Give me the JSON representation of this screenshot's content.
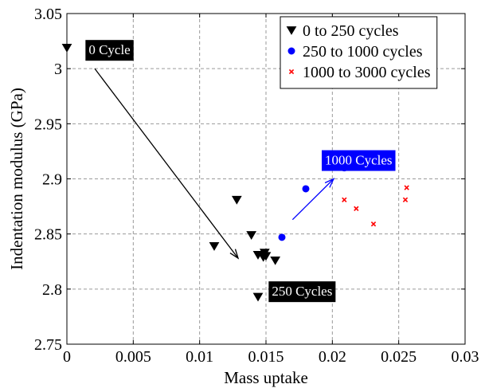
{
  "chart_data": {
    "type": "scatter",
    "xlabel": "Mass uptake",
    "ylabel": "Indentation modulus (GPa)",
    "xlim": [
      0,
      0.03
    ],
    "ylim": [
      2.75,
      3.05
    ],
    "xticks": [
      0,
      0.005,
      0.01,
      0.015,
      0.02,
      0.025,
      0.03
    ],
    "xtick_labels": [
      "0",
      "0.005",
      "0.01",
      "0.015",
      "0.02",
      "0.025",
      "0.03"
    ],
    "yticks": [
      2.75,
      2.8,
      2.85,
      2.9,
      2.95,
      3.0,
      3.05
    ],
    "ytick_labels": [
      "2.75",
      "2.8",
      "2.85",
      "2.9",
      "2.95",
      "3",
      "3.05"
    ],
    "grid": true,
    "legend_position": "top-right",
    "series": [
      {
        "name": "0 to 250 cycles",
        "marker": "triangle-down",
        "color": "#000000",
        "points": [
          [
            0.0,
            3.019
          ],
          [
            0.0111,
            2.839
          ],
          [
            0.0128,
            2.881
          ],
          [
            0.0139,
            2.849
          ],
          [
            0.0144,
            2.831
          ],
          [
            0.0148,
            2.829
          ],
          [
            0.0149,
            2.833
          ],
          [
            0.015,
            2.83
          ],
          [
            0.0157,
            2.826
          ],
          [
            0.0144,
            2.793
          ]
        ]
      },
      {
        "name": "250 to 1000 cycles",
        "marker": "circle",
        "color": "#0000ff",
        "points": [
          [
            0.0162,
            2.847
          ],
          [
            0.018,
            2.891
          ],
          [
            0.0209,
            2.91
          ]
        ]
      },
      {
        "name": "1000 to 3000 cycles",
        "marker": "x",
        "color": "#ff0000",
        "points": [
          [
            0.0209,
            2.881
          ],
          [
            0.0218,
            2.873
          ],
          [
            0.0231,
            2.859
          ],
          [
            0.0255,
            2.881
          ],
          [
            0.0256,
            2.892
          ]
        ]
      }
    ],
    "annotations": [
      {
        "text": "0 Cycle",
        "bg": "#000000",
        "fg": "#ffffff",
        "x": 0.0014,
        "y": 3.026
      },
      {
        "text": "1000 Cycles",
        "bg": "#0000ff",
        "fg": "#ffffff",
        "x": 0.0192,
        "y": 2.926
      },
      {
        "text": "250 Cycles",
        "bg": "#000000",
        "fg": "#ffffff",
        "x": 0.0152,
        "y": 2.807
      }
    ],
    "arrows": [
      {
        "color": "#000000",
        "from": [
          0.0021,
          3.0
        ],
        "to": [
          0.0129,
          2.828
        ]
      },
      {
        "color": "#0000ff",
        "from": [
          0.017,
          2.863
        ],
        "to": [
          0.0201,
          2.9
        ]
      }
    ]
  }
}
